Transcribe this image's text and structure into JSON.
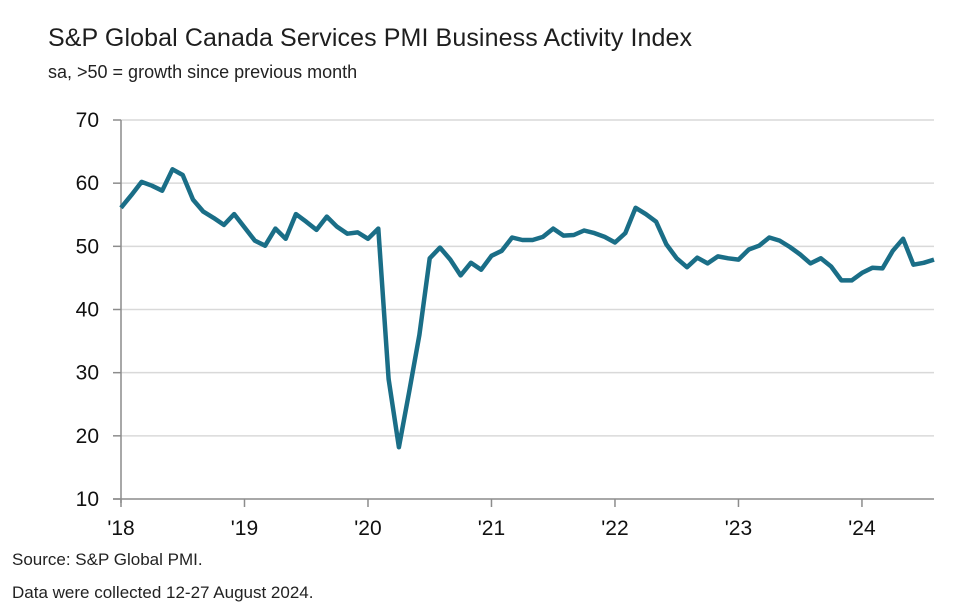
{
  "header": {
    "title": "S&P Global Canada Services PMI Business Activity Index",
    "subtitle": "sa, >50 = growth since previous month"
  },
  "footer": {
    "source": "Source: S&P Global PMI.",
    "note": "Data were collected 12-27 August 2024."
  },
  "colors": {
    "series": "#1a6e87",
    "grid": "#d9d9d9",
    "axis": "#8c8c8c"
  },
  "chart_data": {
    "type": "line",
    "title": "S&P Global Canada Services PMI Business Activity Index",
    "subtitle": "sa, >50 = growth since previous month",
    "xlabel": "",
    "ylabel": "",
    "ylim": [
      10,
      70
    ],
    "yticks": [
      10,
      20,
      30,
      40,
      50,
      60,
      70
    ],
    "ytick_labels": [
      "10",
      "20",
      "30",
      "40",
      "50",
      "60",
      "70"
    ],
    "xticks": [
      "2018-01",
      "2019-01",
      "2020-01",
      "2021-01",
      "2022-01",
      "2023-01",
      "2024-01"
    ],
    "xtick_labels": [
      "'18",
      "'19",
      "'20",
      "'21",
      "'22",
      "'23",
      "'24"
    ],
    "x_range": [
      "2018-01",
      "2024-08"
    ],
    "grid": "horizontal",
    "legend": "none",
    "series": [
      {
        "name": "Services PMI Business Activity Index",
        "start": "2018-01",
        "frequency": "monthly",
        "values": [
          56.1,
          58.1,
          60.2,
          59.6,
          58.8,
          62.2,
          61.3,
          57.4,
          55.5,
          54.5,
          53.4,
          55.1,
          53.0,
          50.9,
          50.1,
          52.8,
          51.2,
          55.1,
          53.9,
          52.6,
          54.7,
          53.1,
          52.0,
          52.2,
          51.2,
          52.8,
          29.0,
          18.2,
          27.0,
          36.0,
          48.1,
          49.8,
          47.9,
          45.4,
          47.4,
          46.3,
          48.5,
          49.3,
          51.4,
          51.0,
          51.0,
          51.5,
          52.8,
          51.7,
          51.8,
          52.5,
          52.1,
          51.5,
          50.6,
          52.1,
          56.1,
          55.1,
          53.9,
          50.3,
          48.1,
          46.7,
          48.2,
          47.3,
          48.4,
          48.1,
          47.9,
          49.5,
          50.1,
          51.4,
          50.9,
          49.9,
          48.7,
          47.3,
          48.1,
          46.8,
          44.6,
          44.6,
          45.8,
          46.6,
          46.5,
          49.3,
          51.2,
          47.1,
          47.4,
          47.9
        ]
      }
    ]
  }
}
